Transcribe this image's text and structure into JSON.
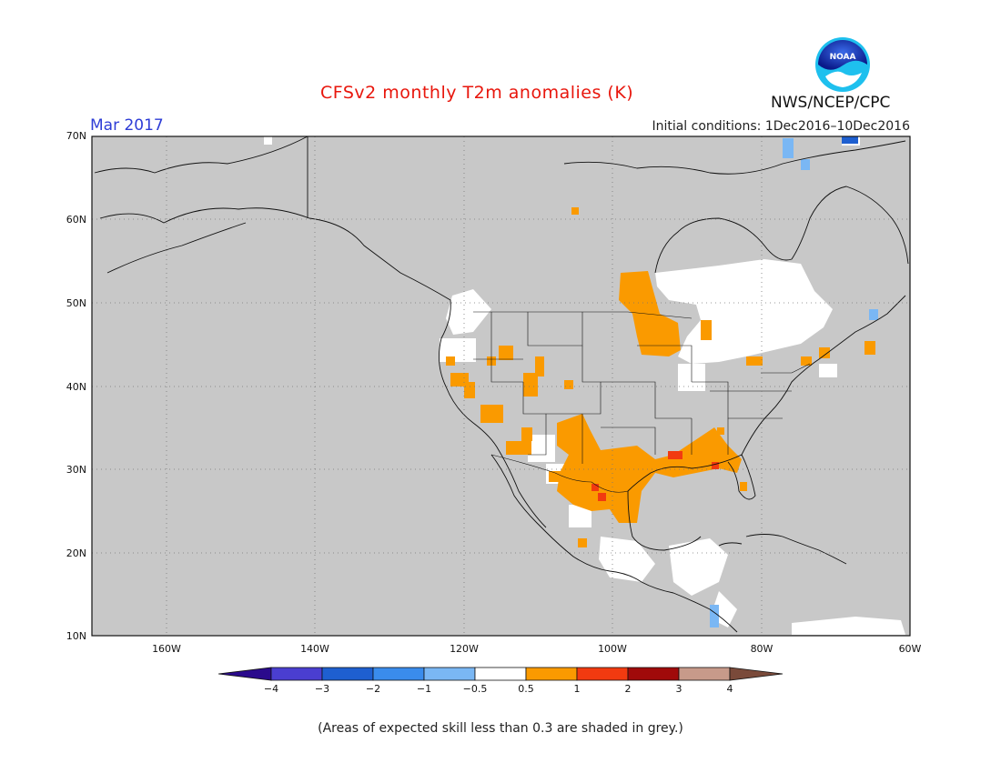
{
  "header": {
    "title": "CFSv2 monthly T2m anomalies (K)",
    "month": "Mar 2017",
    "initial_conditions": "Initial conditions: 1Dec2016–10Dec2016",
    "agency": "NWS/NCEP/CPC",
    "logo_text": "NOAA"
  },
  "map": {
    "region": "North America",
    "lat_labels": [
      "70N",
      "60N",
      "50N",
      "40N",
      "30N",
      "20N",
      "10N"
    ],
    "lon_labels": [
      "160W",
      "140W",
      "120W",
      "100W",
      "80W",
      "60W"
    ],
    "colors": {
      "grey_low_skill": "#c8c8c8",
      "neutral": "#ffffff",
      "warm_0_5_1": "#fa9a00",
      "warm_1_2": "#f23a10",
      "cool_minus1_minus0_5": "#7ab7f4",
      "coast": "#111111",
      "grid": "#666666"
    }
  },
  "colorbar": {
    "labels": [
      "−4",
      "−3",
      "−2",
      "−1",
      "−0.5",
      "0.5",
      "1",
      "2",
      "3",
      "4"
    ],
    "colors": [
      "#2a0a8c",
      "#4a3ed0",
      "#1e5fd0",
      "#3a8cec",
      "#7ab7f4",
      "#ffffff",
      "#fa9a00",
      "#f23a10",
      "#a00a0a",
      "#c79a8a",
      "#7a4a3a"
    ]
  },
  "footnote": "(Areas of expected skill less than 0.3 are shaded in grey.)"
}
